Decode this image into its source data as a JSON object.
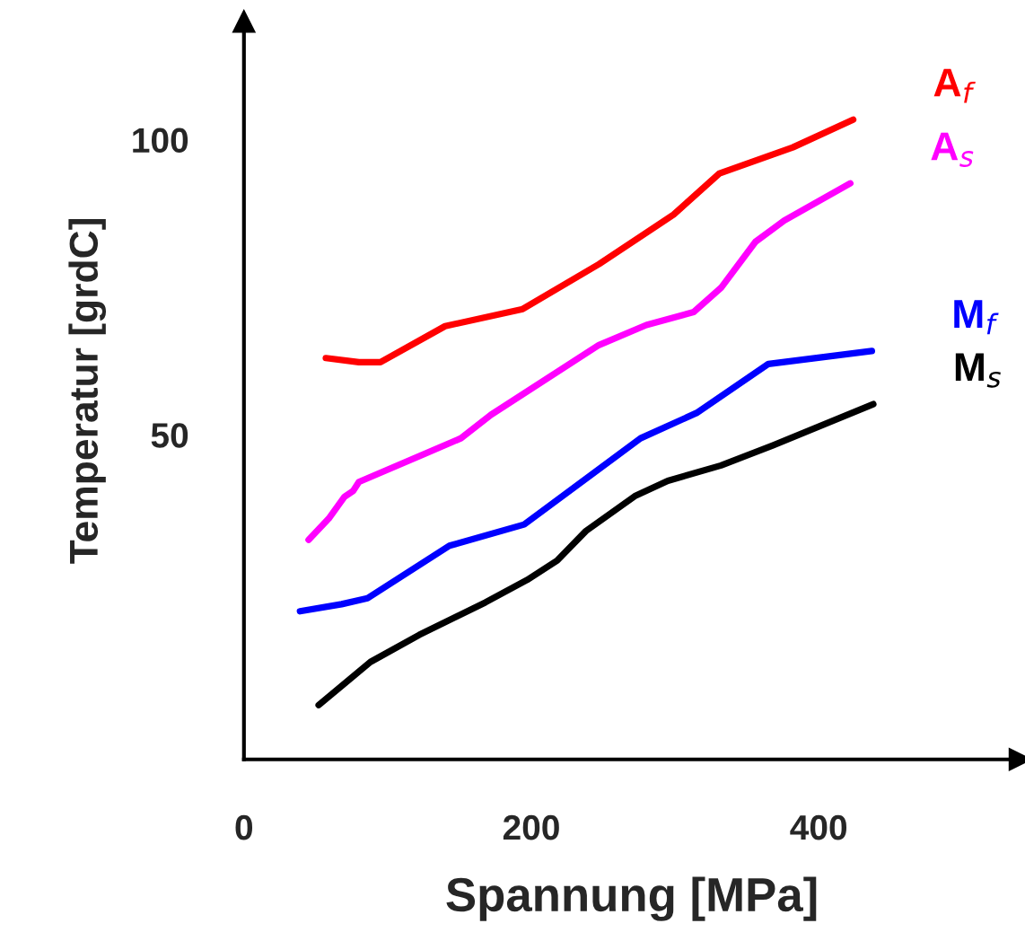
{
  "chart_data": {
    "type": "line",
    "xlabel": "Spannung [MPa]",
    "ylabel": "Temperatur [grdC]",
    "xlim": [
      0,
      540
    ],
    "ylim": [
      -5,
      120
    ],
    "xticks": [
      0,
      200,
      400
    ],
    "yticks": [
      50,
      100
    ],
    "grid": false,
    "legend": false,
    "line_style": "solid",
    "marker": "none",
    "series": [
      {
        "name": "A$_{f}$",
        "color": "#ff0000",
        "x": [
          57,
          80,
          95,
          140,
          194,
          247,
          299,
          331,
          382,
          424
        ],
        "values": [
          63.0,
          62.3,
          62.3,
          68.4,
          71.3,
          78.9,
          87.3,
          94.3,
          98.7,
          103.4
        ]
      },
      {
        "name": "A$_{s}$",
        "color": "#ff00ff",
        "x": [
          45,
          59,
          70,
          76,
          80,
          151,
          172,
          247,
          280,
          313,
          332,
          356,
          376,
          422
        ],
        "values": [
          32.2,
          35.8,
          39.5,
          40.5,
          42.0,
          49.4,
          53.4,
          65.2,
          68.6,
          70.8,
          74.9,
          82.7,
          86.3,
          92.6
        ]
      },
      {
        "name": "M$_{f}$",
        "color": "#0000ff",
        "x": [
          39,
          68,
          86,
          143,
          195,
          276,
          315,
          365,
          437
        ],
        "values": [
          20.1,
          21.3,
          22.3,
          31.2,
          34.8,
          49.4,
          53.7,
          62.0,
          64.2
        ]
      },
      {
        "name": "M$_{s}$",
        "color": "#000000",
        "x": [
          52,
          88,
          122,
          168,
          197,
          218,
          238,
          272,
          295,
          332,
          368,
          438
        ],
        "values": [
          4.2,
          11.5,
          16.1,
          21.6,
          25.4,
          28.7,
          33.7,
          39.6,
          42.2,
          44.8,
          48.2,
          55.2
        ]
      }
    ]
  }
}
